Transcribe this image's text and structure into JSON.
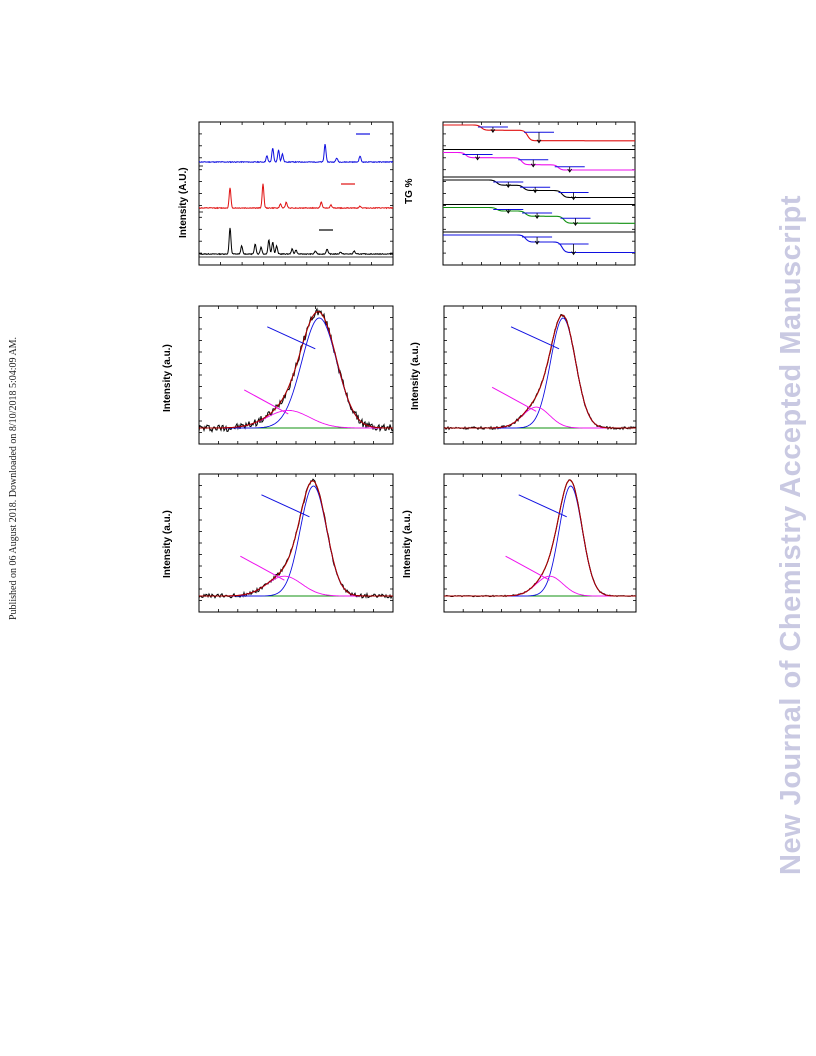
{
  "side_note": "Published on 06 August 2018. Downloaded on 8/10/2018 5:04:09 AM.",
  "watermark": "New Journal of Chemistry Accepted Manuscript",
  "colors": {
    "blue": "#1010e0",
    "red": "#e01010",
    "black": "#000000",
    "magenta": "#ee10ee",
    "green": "#109010",
    "darkred": "#aa0000"
  },
  "panels": {
    "xrd": {
      "ylabel": "Intensity (A.U.)"
    },
    "tg": {
      "ylabel": "TG %"
    },
    "pl1": {
      "ylabel": "Intensity (a.u.)"
    },
    "pl2": {
      "ylabel": "Intensity (a.u.)"
    },
    "pl3": {
      "ylabel": "Intensity (a.u.)"
    },
    "pl4": {
      "ylabel": "Intensity (a.u.)"
    }
  },
  "chart_data": [
    {
      "type": "line",
      "id": "xrd",
      "title": "",
      "ylabel": "Intensity (A.U.)",
      "xlabel": "",
      "xlim": [
        0,
        100
      ],
      "series": [
        {
          "color": "blue",
          "offset": 2,
          "peaks": [
            [
              35,
              6
            ],
            [
              38,
              14
            ],
            [
              41,
              12
            ],
            [
              43,
              8
            ],
            [
              65,
              18
            ],
            [
              71,
              4
            ],
            [
              83,
              6
            ]
          ]
        },
        {
          "color": "red",
          "offset": 1,
          "peaks": [
            [
              16,
              20
            ],
            [
              33,
              24
            ],
            [
              42,
              4
            ],
            [
              45,
              6
            ],
            [
              63,
              6
            ],
            [
              68,
              3
            ],
            [
              83,
              2
            ]
          ]
        },
        {
          "color": "black",
          "offset": 0,
          "peaks": [
            [
              16,
              26
            ],
            [
              22,
              8
            ],
            [
              29,
              10
            ],
            [
              32,
              7
            ],
            [
              36,
              14
            ],
            [
              38,
              12
            ],
            [
              40,
              8
            ],
            [
              48,
              5
            ],
            [
              50,
              4
            ],
            [
              60,
              3
            ],
            [
              66,
              5
            ],
            [
              73,
              2
            ],
            [
              80,
              3
            ]
          ]
        }
      ]
    },
    {
      "type": "line",
      "id": "tg",
      "title": "",
      "ylabel": "TG %",
      "xlabel": "",
      "series": [
        {
          "color": "red",
          "steps": [
            [
              20,
              0.3
            ],
            [
              44,
              0.6
            ]
          ]
        },
        {
          "color": "magenta",
          "steps": [
            [
              12,
              0.3
            ],
            [
              41,
              0.4
            ],
            [
              60,
              0.3
            ]
          ]
        },
        {
          "color": "black",
          "steps": [
            [
              28,
              0.3
            ],
            [
              42,
              0.3
            ],
            [
              62,
              0.4
            ]
          ]
        },
        {
          "color": "green",
          "steps": [
            [
              28,
              0.2
            ],
            [
              43,
              0.3
            ],
            [
              63,
              0.4
            ]
          ]
        },
        {
          "color": "blue",
          "steps": [
            [
              43,
              0.4
            ],
            [
              62,
              0.6
            ]
          ]
        }
      ]
    },
    {
      "type": "line",
      "id": "pl1",
      "ylabel": "Intensity (a.u.)",
      "xlabel": "",
      "xlim": [
        0,
        100
      ],
      "ylim": [
        -0.05,
        1.05
      ],
      "noise": 0.035,
      "fits": [
        {
          "color": "blue",
          "center": 62,
          "width": 9,
          "amp": 1.0
        },
        {
          "color": "magenta",
          "center": 46,
          "width": 11,
          "amp": 0.16
        }
      ]
    },
    {
      "type": "line",
      "id": "pl2",
      "ylabel": "Intensity (a.u.)",
      "xlabel": "",
      "xlim": [
        0,
        100
      ],
      "ylim": [
        -0.05,
        1.05
      ],
      "noise": 0.012,
      "fits": [
        {
          "color": "blue",
          "center": 62,
          "width": 6.5,
          "amp": 1.0
        },
        {
          "color": "magenta",
          "center": 48,
          "width": 7,
          "amp": 0.19
        }
      ]
    },
    {
      "type": "line",
      "id": "pl3",
      "ylabel": "Intensity (a.u.)",
      "xlabel": "",
      "xlim": [
        0,
        100
      ],
      "ylim": [
        -0.05,
        1.05
      ],
      "noise": 0.02,
      "fits": [
        {
          "color": "blue",
          "center": 59,
          "width": 6.8,
          "amp": 1.0
        },
        {
          "color": "magenta",
          "center": 44,
          "width": 9,
          "amp": 0.18
        }
      ]
    },
    {
      "type": "line",
      "id": "pl4",
      "ylabel": "Intensity (a.u.)",
      "xlabel": "",
      "xlim": [
        0,
        100
      ],
      "ylim": [
        -0.05,
        1.05
      ],
      "noise": 0.006,
      "fits": [
        {
          "color": "blue",
          "center": 66,
          "width": 6,
          "amp": 1.0
        },
        {
          "color": "magenta",
          "center": 55,
          "width": 7,
          "amp": 0.18
        }
      ]
    }
  ]
}
